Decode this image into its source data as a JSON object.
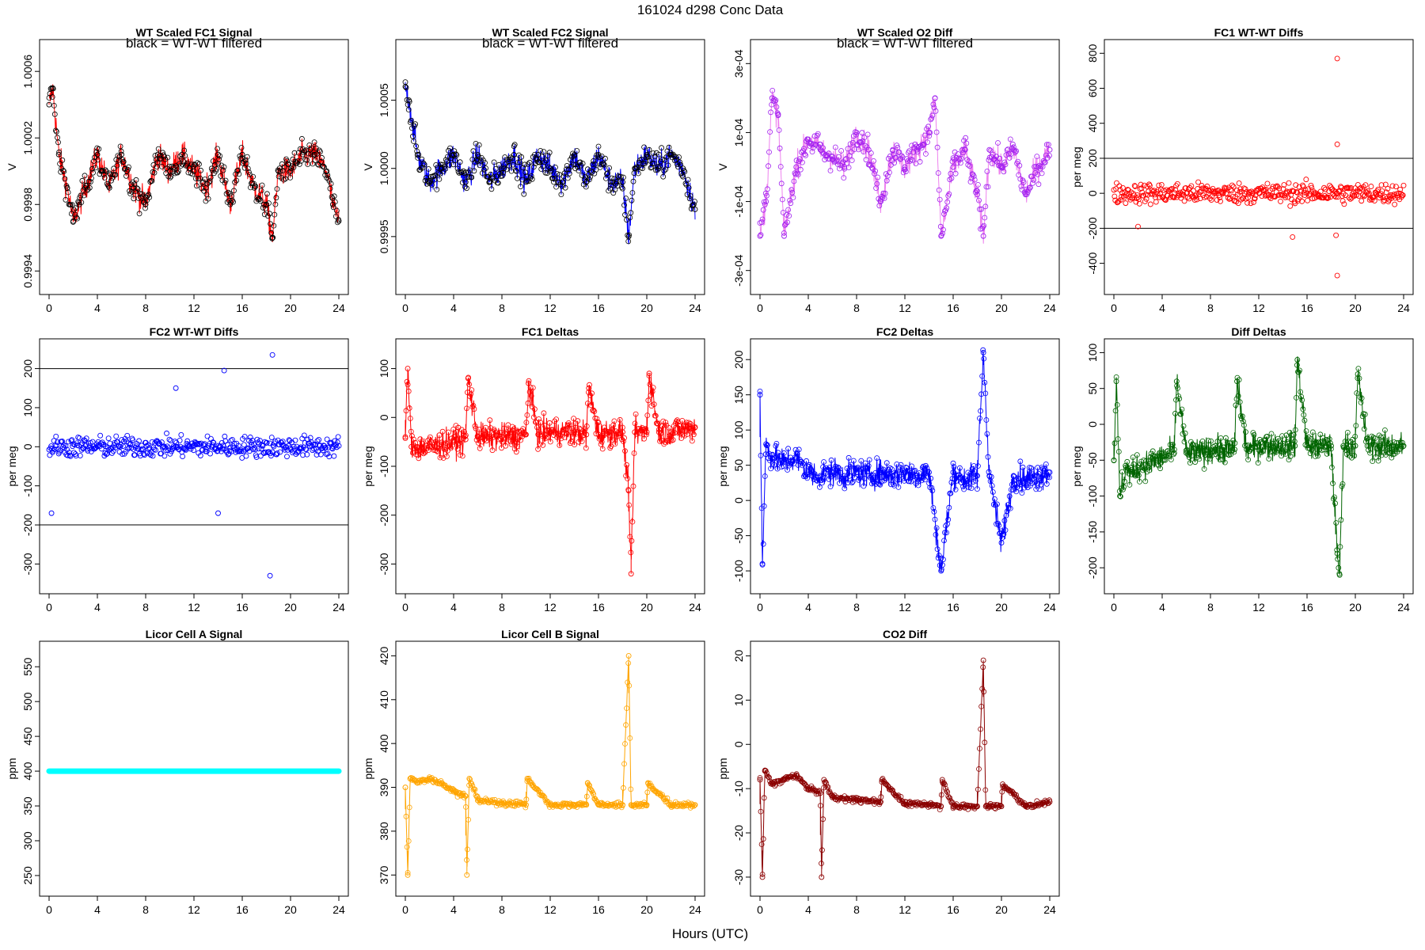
{
  "figure": {
    "title": "161024   d298   Conc Data",
    "xlabel": "Hours (UTC)"
  },
  "chart_data": [
    {
      "id": "fc1_signal",
      "type": "line",
      "title": "WT Scaled FC1 Signal",
      "annotation": "black = WT-WT filtered",
      "ylabel": "V",
      "xlim": [
        0,
        24
      ],
      "ylim": [
        0.99932,
        1.00073
      ],
      "xticks": [
        0,
        4,
        8,
        12,
        16,
        20,
        24
      ],
      "yticks": [
        0.9994,
        0.9998,
        1.0002,
        1.0006
      ],
      "ytick_labels": [
        "0.9994",
        "0.9998",
        "1.0002",
        "1.0006"
      ],
      "color": "#ff0000",
      "marker_color": "#000000",
      "x": [
        0,
        0.3,
        0.8,
        1.5,
        2,
        2.5,
        3,
        4,
        5,
        6,
        7,
        8,
        9,
        10,
        11,
        12,
        13,
        14,
        15,
        16,
        17,
        18,
        18.5,
        19,
        20,
        21,
        22,
        23,
        23.5,
        24
      ],
      "y": [
        1.0004,
        1.0005,
        1.0001,
        0.9999,
        0.9997,
        0.9998,
        0.9999,
        1.0001,
        0.9999,
        1.0001,
        0.9999,
        0.9998,
        1.0001,
        1.0,
        1.0001,
        1.0,
        0.9999,
        1.0001,
        0.9998,
        1.0001,
        0.9999,
        0.9998,
        0.9996,
        1.0,
        1.0,
        1.0001,
        1.0001,
        1.0,
        0.9998,
        0.9997
      ]
    },
    {
      "id": "fc2_signal",
      "type": "line",
      "title": "WT Scaled FC2 Signal",
      "annotation": "black = WT-WT filtered",
      "ylabel": "V",
      "xlim": [
        0,
        24
      ],
      "ylim": [
        0.99915,
        1.00087
      ],
      "xticks": [
        0,
        4,
        8,
        12,
        16,
        20,
        24
      ],
      "yticks": [
        0.9995,
        1.0,
        1.0005
      ],
      "ytick_labels": [
        "0.9995",
        "1.0000",
        "1.0005"
      ],
      "color": "#0000ff",
      "marker_color": "#000000",
      "x": [
        0,
        0.3,
        1,
        2,
        3,
        4,
        5,
        6,
        7,
        8,
        9,
        10,
        11,
        12,
        13,
        14,
        15,
        16,
        17,
        18,
        18.5,
        19,
        20,
        21,
        22,
        23,
        24
      ],
      "y": [
        1.0006,
        1.0005,
        1.0001,
        0.9999,
        1.0,
        1.0001,
        0.9999,
        1.0001,
        0.9999,
        1.0,
        1.0001,
        0.9999,
        1.0001,
        1.0,
        0.9999,
        1.0001,
        0.9999,
        1.0001,
        0.9999,
        0.9999,
        0.9995,
        1.0,
        1.0001,
        1.0,
        1.0001,
        1.0,
        0.9997
      ]
    },
    {
      "id": "o2_diff",
      "type": "line",
      "title": "WT Scaled O2 Diff",
      "annotation": "black = WT-WT filtered",
      "ylabel": "V",
      "xlim": [
        0,
        24
      ],
      "ylim": [
        -0.00034,
        0.00034
      ],
      "xticks": [
        0,
        4,
        8,
        12,
        16,
        20,
        24
      ],
      "yticks": [
        -0.0003,
        -0.0001,
        0.0001,
        0.0003
      ],
      "ytick_labels": [
        "-3e-04",
        "-1e-04",
        "1e-04",
        "3e-04"
      ],
      "color": "#ee82ee",
      "marker_color": "#a020f0",
      "x": [
        0,
        0.5,
        1,
        1.5,
        2,
        3,
        4,
        5,
        6,
        7,
        8,
        9,
        10,
        11,
        12,
        13,
        14,
        14.5,
        15,
        16,
        17,
        18,
        18.5,
        19,
        20,
        21,
        22,
        23,
        24
      ],
      "y": [
        -0.0002,
        -0.0001,
        0.0002,
        0.00015,
        -0.0002,
        0.0,
        8e-05,
        5e-05,
        3e-05,
        0.0,
        0.0001,
        5e-05,
        -0.0001,
        5e-05,
        0.0,
        5e-05,
        0.0001,
        0.0002,
        -0.0002,
        0.0,
        5e-05,
        -8e-05,
        -0.0002,
        5e-05,
        0.0,
        5e-05,
        -8e-05,
        0.0,
        5e-05
      ]
    },
    {
      "id": "fc1_wtwt",
      "type": "scatter",
      "title": "FC1 WT-WT Diffs",
      "ylabel": "per meg",
      "xlim": [
        0,
        24
      ],
      "ylim": [
        -520,
        820
      ],
      "xticks": [
        0,
        4,
        8,
        12,
        16,
        20,
        24
      ],
      "yticks": [
        -400,
        -200,
        0,
        200,
        400,
        600,
        800
      ],
      "ytick_labels": [
        "-400",
        "-200",
        "0",
        "200",
        "400",
        "600",
        "800"
      ],
      "hlines": [
        200,
        -200
      ],
      "color": "#ff0000",
      "outliers": {
        "x": [
          18.5,
          18.5,
          18.5,
          14.8,
          2,
          18.4
        ],
        "y": [
          770,
          280,
          -470,
          -250,
          -190,
          -240
        ]
      }
    },
    {
      "id": "fc2_wtwt",
      "type": "scatter",
      "title": "FC2 WT-WT Diffs",
      "ylabel": "per meg",
      "xlim": [
        0,
        24
      ],
      "ylim": [
        -350,
        250
      ],
      "xticks": [
        0,
        4,
        8,
        12,
        16,
        20,
        24
      ],
      "yticks": [
        -300,
        -200,
        -100,
        0,
        100,
        200
      ],
      "ytick_labels": [
        "-300",
        "-200",
        "-100",
        "0",
        "100",
        "200"
      ],
      "hlines": [
        200,
        -200
      ],
      "color": "#0000ff",
      "outliers": {
        "x": [
          18.3,
          18.5,
          14.5,
          0.2,
          14,
          10.5
        ],
        "y": [
          -330,
          235,
          195,
          -170,
          -170,
          150
        ]
      }
    },
    {
      "id": "fc1_deltas",
      "type": "line",
      "title": "FC1 Deltas",
      "ylabel": "per meg",
      "xlim": [
        0,
        24
      ],
      "ylim": [
        -340,
        140
      ],
      "xticks": [
        0,
        4,
        8,
        12,
        16,
        20,
        24
      ],
      "yticks": [
        -300,
        -200,
        -100,
        0,
        100
      ],
      "ytick_labels": [
        "-300",
        "-200",
        "-100",
        "0",
        "100"
      ],
      "color": "#ff0000",
      "x": [
        0,
        0.2,
        0.5,
        1,
        2,
        3,
        4,
        5,
        5.2,
        6,
        7,
        8,
        9,
        10,
        10.2,
        11,
        12,
        13,
        14,
        15,
        15.2,
        16,
        17,
        18,
        18.5,
        18.7,
        19,
        20,
        20.2,
        21,
        22,
        23,
        24
      ],
      "y": [
        -40,
        100,
        -60,
        -60,
        -60,
        -55,
        -50,
        -45,
        80,
        -40,
        -40,
        -40,
        -40,
        -35,
        70,
        -35,
        -30,
        -30,
        -30,
        -35,
        60,
        -35,
        -30,
        -30,
        -150,
        -320,
        -30,
        -30,
        90,
        -30,
        -30,
        -25,
        -20
      ]
    },
    {
      "id": "fc2_deltas",
      "type": "line",
      "title": "FC2 Deltas",
      "ylabel": "per meg",
      "xlim": [
        0,
        24
      ],
      "ylim": [
        -118,
        215
      ],
      "xticks": [
        0,
        4,
        8,
        12,
        16,
        20,
        24
      ],
      "yticks": [
        -100,
        -50,
        0,
        50,
        100,
        150,
        200
      ],
      "ytick_labels": [
        "-100",
        "-50",
        "0",
        "50",
        "100",
        "150",
        "200"
      ],
      "color": "#0000ff",
      "x": [
        0,
        0.2,
        0.5,
        1,
        2,
        3,
        4,
        5,
        6,
        7,
        8,
        9,
        10,
        11,
        12,
        13,
        14,
        15,
        16,
        17,
        18,
        18.5,
        19,
        20,
        21,
        22,
        23,
        24
      ],
      "y": [
        150,
        -90,
        80,
        60,
        55,
        60,
        40,
        35,
        40,
        35,
        40,
        35,
        40,
        35,
        40,
        35,
        40,
        -100,
        40,
        30,
        35,
        210,
        35,
        -60,
        35,
        30,
        35,
        40
      ]
    },
    {
      "id": "diff_deltas",
      "type": "line",
      "title": "Diff Deltas",
      "ylabel": "per meg",
      "xlim": [
        0,
        24
      ],
      "ylim": [
        -222,
        105
      ],
      "xticks": [
        0,
        4,
        8,
        12,
        16,
        20,
        24
      ],
      "yticks": [
        -200,
        -150,
        -100,
        -50,
        0,
        50,
        100
      ],
      "ytick_labels": [
        "-200",
        "-150",
        "-100",
        "-50",
        "0",
        "50",
        "100"
      ],
      "color": "#006400",
      "x": [
        0,
        0.2,
        0.5,
        1,
        1.5,
        2,
        3,
        4,
        5,
        5.2,
        6,
        7,
        8,
        9,
        10,
        10.2,
        11,
        12,
        13,
        14,
        15,
        15.2,
        16,
        17,
        18,
        18.5,
        18.7,
        19,
        20,
        20.2,
        21,
        22,
        23,
        24
      ],
      "y": [
        -50,
        60,
        -100,
        -60,
        -70,
        -60,
        -55,
        -45,
        -40,
        60,
        -40,
        -40,
        -35,
        -35,
        -35,
        60,
        -35,
        -30,
        -30,
        -30,
        -30,
        90,
        -30,
        -30,
        -30,
        -180,
        -210,
        -30,
        -30,
        70,
        -30,
        -30,
        -30,
        -30
      ]
    },
    {
      "id": "licor_a",
      "type": "line",
      "title": "Licor Cell A Signal",
      "ylabel": "ppm",
      "xlim": [
        0,
        24
      ],
      "ylim": [
        235,
        572
      ],
      "xticks": [
        0,
        4,
        8,
        12,
        16,
        20,
        24
      ],
      "yticks": [
        250,
        300,
        350,
        400,
        450,
        500,
        550
      ],
      "ytick_labels": [
        "250",
        "300",
        "350",
        "400",
        "450",
        "500",
        "550"
      ],
      "color": "#00ffff",
      "x": [
        0,
        24
      ],
      "y": [
        400,
        400
      ]
    },
    {
      "id": "licor_b",
      "type": "line",
      "title": "Licor Cell B Signal",
      "ylabel": "ppm",
      "xlim": [
        0,
        24
      ],
      "ylim": [
        367.5,
        421
      ],
      "xticks": [
        0,
        4,
        8,
        12,
        16,
        20,
        24
      ],
      "yticks": [
        370,
        380,
        390,
        400,
        410,
        420
      ],
      "ytick_labels": [
        "370",
        "380",
        "390",
        "400",
        "410",
        "420"
      ],
      "color": "#ffa500",
      "x": [
        0,
        0.2,
        0.4,
        1,
        2,
        3,
        4,
        5,
        5.1,
        5.3,
        6,
        8,
        10,
        10.1,
        12,
        14,
        15,
        15.1,
        16,
        18,
        18.5,
        18.7,
        19,
        20,
        20.1,
        22,
        24
      ],
      "y": [
        390,
        370,
        392,
        391,
        392,
        391,
        389,
        388,
        370,
        392,
        387,
        386.5,
        386,
        392,
        386,
        386,
        386,
        391,
        386,
        386,
        420,
        386,
        386,
        386,
        391,
        386,
        386
      ]
    },
    {
      "id": "co2_diff",
      "type": "line",
      "title": "CO2 Diff",
      "ylabel": "ppm",
      "xlim": [
        0,
        24
      ],
      "ylim": [
        -32,
        21
      ],
      "xticks": [
        0,
        4,
        8,
        12,
        16,
        20,
        24
      ],
      "yticks": [
        -30,
        -20,
        -10,
        0,
        10,
        20
      ],
      "ytick_labels": [
        "-30",
        "-20",
        "-10",
        "0",
        "10",
        "20"
      ],
      "color": "#8b0000",
      "x": [
        0,
        0.2,
        0.4,
        1,
        2,
        3,
        4,
        5,
        5.1,
        5.3,
        6,
        8,
        10,
        10.1,
        12,
        14,
        15,
        15.1,
        16,
        18,
        18.5,
        18.7,
        19,
        20,
        20.1,
        22,
        24
      ],
      "y": [
        -8,
        -30,
        -6,
        -9,
        -8,
        -7,
        -10,
        -11,
        -30,
        -8,
        -12,
        -12.5,
        -13,
        -8,
        -13.5,
        -13.5,
        -14,
        -8,
        -14,
        -14,
        19,
        -14,
        -14,
        -14,
        -9,
        -14,
        -13
      ]
    }
  ]
}
